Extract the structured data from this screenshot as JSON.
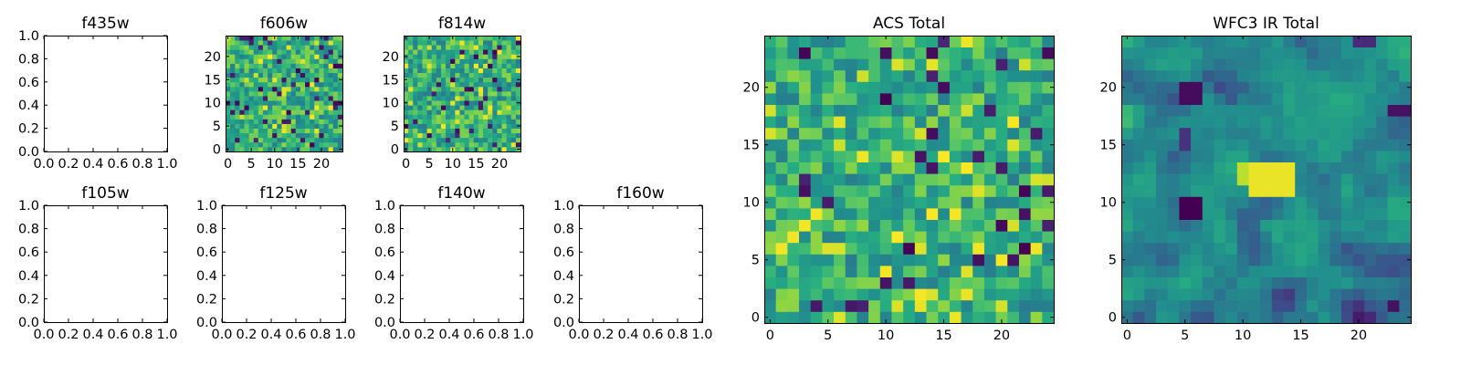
{
  "chart_data": [
    {
      "id": "f435w",
      "title": "f435w",
      "type": "heatmap",
      "empty": true,
      "xticks": [
        "0.0",
        "0.2",
        "0.4",
        "0.6",
        "0.8",
        "1.0"
      ],
      "yticks": [
        "0.0",
        "0.2",
        "0.4",
        "0.6",
        "0.8",
        "1.0"
      ],
      "xlim": [
        0,
        1
      ],
      "ylim": [
        0,
        1
      ]
    },
    {
      "id": "f606w",
      "title": "f606w",
      "type": "heatmap",
      "empty": false,
      "size": 25,
      "seed": 606,
      "smooth": 0,
      "xticks": [
        "0",
        "5",
        "10",
        "15",
        "20"
      ],
      "yticks": [
        "0",
        "5",
        "10",
        "15",
        "20"
      ],
      "xlim": [
        -0.5,
        24.5
      ],
      "ylim": [
        -0.5,
        24.5
      ],
      "colormap": "viridis"
    },
    {
      "id": "f814w",
      "title": "f814w",
      "type": "heatmap",
      "empty": false,
      "size": 25,
      "seed": 814,
      "smooth": 0,
      "xticks": [
        "0",
        "5",
        "10",
        "15",
        "20"
      ],
      "yticks": [
        "0",
        "5",
        "10",
        "15",
        "20"
      ],
      "xlim": [
        -0.5,
        24.5
      ],
      "ylim": [
        -0.5,
        24.5
      ],
      "colormap": "viridis"
    },
    {
      "id": "f105w",
      "title": "f105w",
      "type": "heatmap",
      "empty": true,
      "xticks": [
        "0.0",
        "0.2",
        "0.4",
        "0.6",
        "0.8",
        "1.0"
      ],
      "yticks": [
        "0.0",
        "0.2",
        "0.4",
        "0.6",
        "0.8",
        "1.0"
      ],
      "xlim": [
        0,
        1
      ],
      "ylim": [
        0,
        1
      ]
    },
    {
      "id": "f125w",
      "title": "f125w",
      "type": "heatmap",
      "empty": true,
      "xticks": [
        "0.0",
        "0.2",
        "0.4",
        "0.6",
        "0.8",
        "1.0"
      ],
      "yticks": [
        "0.0",
        "0.2",
        "0.4",
        "0.6",
        "0.8",
        "1.0"
      ],
      "xlim": [
        0,
        1
      ],
      "ylim": [
        0,
        1
      ]
    },
    {
      "id": "f140w",
      "title": "f140w",
      "type": "heatmap",
      "empty": true,
      "xticks": [
        "0.0",
        "0.2",
        "0.4",
        "0.6",
        "0.8",
        "1.0"
      ],
      "yticks": [
        "0.0",
        "0.2",
        "0.4",
        "0.6",
        "0.8",
        "1.0"
      ],
      "xlim": [
        0,
        1
      ],
      "ylim": [
        0,
        1
      ]
    },
    {
      "id": "f160w",
      "title": "f160w",
      "type": "heatmap",
      "empty": true,
      "xticks": [
        "0.0",
        "0.2",
        "0.4",
        "0.6",
        "0.8",
        "1.0"
      ],
      "yticks": [
        "0.0",
        "0.2",
        "0.4",
        "0.6",
        "0.8",
        "1.0"
      ],
      "xlim": [
        0,
        1
      ],
      "ylim": [
        0,
        1
      ]
    },
    {
      "id": "acs",
      "title": "ACS Total",
      "type": "heatmap",
      "empty": false,
      "size": 25,
      "seed": 1234,
      "smooth": 0,
      "xticks": [
        "0",
        "5",
        "10",
        "15",
        "20"
      ],
      "yticks": [
        "0",
        "5",
        "10",
        "15",
        "20"
      ],
      "xlim": [
        -0.5,
        24.5
      ],
      "ylim": [
        -0.5,
        24.5
      ],
      "colormap": "viridis"
    },
    {
      "id": "wfc3",
      "title": "WFC3 IR Total",
      "type": "heatmap",
      "empty": false,
      "size": 25,
      "seed": 3171,
      "smooth": 1,
      "xticks": [
        "0",
        "5",
        "10",
        "15",
        "20"
      ],
      "yticks": [
        "0",
        "5",
        "10",
        "15",
        "20"
      ],
      "xlim": [
        -0.5,
        24.5
      ],
      "ylim": [
        -0.5,
        24.5
      ],
      "colormap": "viridis",
      "features": [
        {
          "x": 11,
          "y": 11,
          "w": 4,
          "h": 3,
          "v": 0.97
        },
        {
          "x": 10,
          "y": 12,
          "w": 1,
          "h": 2,
          "v": 0.9
        },
        {
          "x": 5,
          "y": 9,
          "w": 2,
          "h": 2,
          "v": 0.0
        },
        {
          "x": 5,
          "y": 19,
          "w": 2,
          "h": 2,
          "v": 0.03
        },
        {
          "x": 5,
          "y": 15,
          "w": 1,
          "h": 2,
          "v": 0.15
        },
        {
          "x": 23,
          "y": 18,
          "w": 2,
          "h": 1,
          "v": 0.05
        },
        {
          "x": 23,
          "y": 1,
          "w": 1,
          "h": 1,
          "v": 0.05
        },
        {
          "x": 20,
          "y": 24,
          "w": 2,
          "h": 1,
          "v": 0.12
        }
      ]
    }
  ]
}
